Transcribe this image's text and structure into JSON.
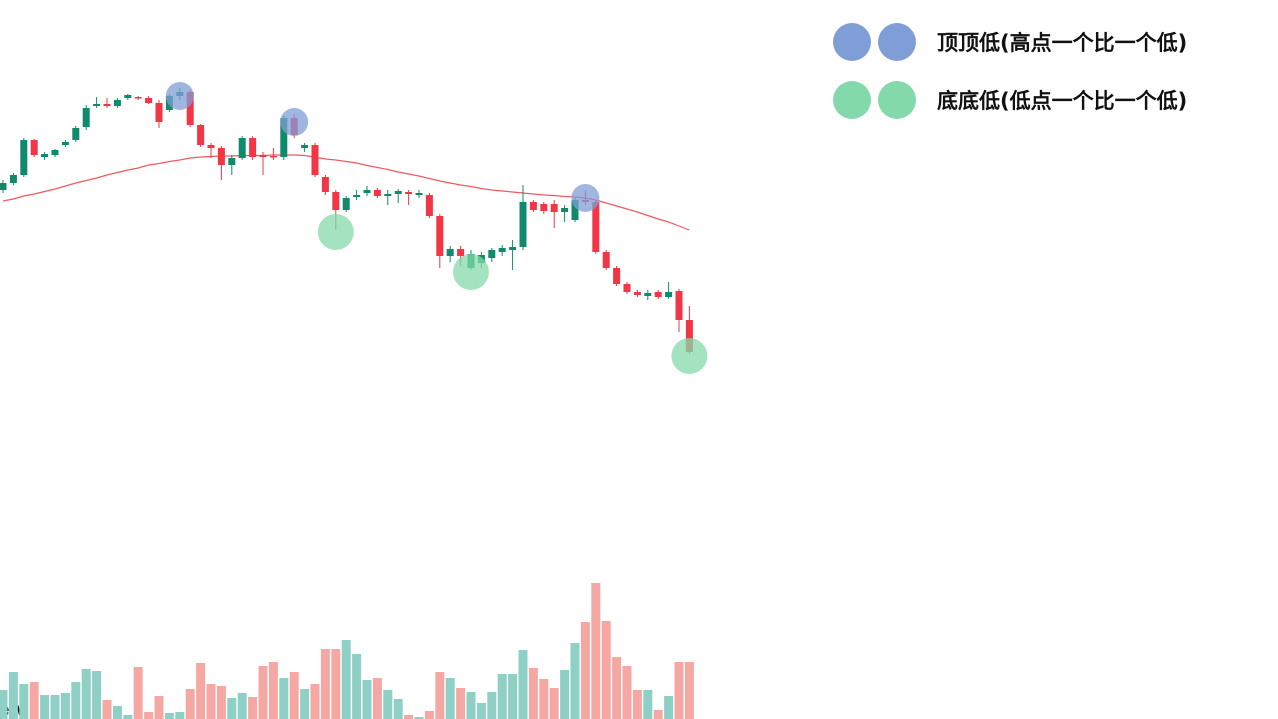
{
  "chart_data": {
    "type": "candlestick",
    "up_color": "#0f8a6c",
    "down_color": "#f23645",
    "volume_up_color": "#8fd0c6",
    "volume_down_color": "#f5a8a3",
    "ma_color": "#ef5a5f",
    "watermark": "ew",
    "ylim": [
      0,
      719
    ],
    "vlim": [
      0,
      140
    ],
    "candles": [
      [
        529,
        539,
        526,
        536
      ],
      [
        536,
        546,
        534,
        544
      ],
      [
        544,
        581,
        542,
        579
      ],
      [
        579,
        580,
        562,
        564
      ],
      [
        562,
        567,
        559,
        565
      ],
      [
        564,
        570,
        562,
        569
      ],
      [
        574,
        579,
        572,
        577
      ],
      [
        579,
        593,
        577,
        591
      ],
      [
        592,
        614,
        589,
        611
      ],
      [
        613,
        622,
        611,
        615
      ],
      [
        615,
        621,
        611,
        613
      ],
      [
        613,
        621,
        611,
        619
      ],
      [
        621,
        625,
        619,
        624
      ],
      [
        622,
        623,
        619,
        621
      ],
      [
        621,
        623,
        615,
        616
      ],
      [
        616,
        619,
        591,
        597
      ],
      [
        609,
        625,
        607,
        623
      ],
      [
        623,
        631,
        619,
        627
      ],
      [
        627,
        629,
        592,
        594
      ],
      [
        594,
        595,
        572,
        574
      ],
      [
        574,
        576,
        561,
        571
      ],
      [
        571,
        573,
        539,
        554
      ],
      [
        554,
        564,
        544,
        561
      ],
      [
        561,
        583,
        559,
        581
      ],
      [
        581,
        583,
        559,
        562
      ],
      [
        564,
        567,
        544,
        562
      ],
      [
        563,
        571,
        559,
        562
      ],
      [
        562,
        603,
        559,
        601
      ],
      [
        601,
        605,
        581,
        584
      ],
      [
        571,
        576,
        567,
        574
      ],
      [
        574,
        576,
        542,
        544
      ],
      [
        542,
        544,
        524,
        527
      ],
      [
        527,
        529,
        489,
        509
      ],
      [
        509,
        523,
        507,
        521
      ],
      [
        522,
        529,
        519,
        524
      ],
      [
        526,
        533,
        523,
        529
      ],
      [
        529,
        531,
        521,
        523
      ],
      [
        523,
        529,
        514,
        525
      ],
      [
        525,
        530,
        516,
        528
      ],
      [
        527,
        529,
        514,
        525
      ],
      [
        524,
        529,
        521,
        526
      ],
      [
        524,
        526,
        501,
        503
      ],
      [
        503,
        505,
        451,
        463
      ],
      [
        463,
        473,
        457,
        470
      ],
      [
        470,
        473,
        453,
        463
      ],
      [
        451,
        469,
        449,
        465
      ],
      [
        456,
        467,
        451,
        464
      ],
      [
        461,
        471,
        457,
        469
      ],
      [
        467,
        474,
        463,
        471
      ],
      [
        469,
        479,
        449,
        472
      ],
      [
        472,
        534,
        469,
        517
      ],
      [
        517,
        519,
        507,
        509
      ],
      [
        515,
        517,
        505,
        508
      ],
      [
        515,
        519,
        491,
        507
      ],
      [
        507,
        514,
        497,
        511
      ],
      [
        499,
        521,
        497,
        519
      ],
      [
        519,
        529,
        514,
        517
      ],
      [
        517,
        519,
        465,
        467
      ],
      [
        467,
        469,
        449,
        451
      ],
      [
        451,
        453,
        433,
        435
      ],
      [
        435,
        437,
        425,
        427
      ],
      [
        427,
        429,
        422,
        424
      ],
      [
        423,
        429,
        419,
        426
      ],
      [
        427,
        429,
        420,
        422
      ],
      [
        422,
        437,
        420,
        427
      ],
      [
        428,
        430,
        387,
        399
      ],
      [
        399,
        413,
        365,
        367
      ]
    ],
    "ma": [
      518,
      520,
      523,
      525,
      527.5,
      530,
      533,
      536,
      538.5,
      541,
      544,
      546.5,
      549,
      551,
      554,
      555.5,
      557.5,
      559,
      561,
      562,
      562.5,
      563,
      563,
      563.5,
      563.5,
      563.5,
      564,
      564,
      564,
      563.5,
      562,
      560,
      559,
      557.5,
      556,
      553.5,
      551.5,
      549.5,
      547,
      545,
      543,
      540.5,
      538,
      536,
      534,
      532.5,
      530.5,
      529,
      528,
      527,
      526,
      525,
      524,
      523.5,
      522.5,
      522,
      521,
      519,
      516,
      513,
      510,
      507,
      503.5,
      500,
      497,
      493,
      489
    ],
    "volume": [
      29,
      47,
      35,
      37,
      24,
      24,
      26,
      37,
      50,
      48,
      19,
      13,
      4,
      52,
      7,
      23,
      6,
      7,
      30,
      56,
      35,
      33,
      21,
      26,
      22,
      53,
      57,
      41,
      47,
      30,
      35,
      70,
      70,
      79,
      65,
      39,
      41,
      29,
      20,
      4,
      2,
      8,
      47,
      41,
      31,
      27,
      16,
      27,
      45,
      45,
      69,
      51,
      40,
      31,
      49,
      76,
      97,
      136,
      98,
      62,
      53,
      29,
      29,
      9,
      23,
      57,
      57
    ],
    "markers": [
      {
        "name": "顶顶低(高点一个比一个低)",
        "color": "#7f9dd6",
        "at": 1,
        "candles": [
          17,
          28,
          56
        ]
      },
      {
        "name": "底底低(低点一个比一个低)",
        "color": "#84d9aa",
        "at": 2,
        "candles": [
          32,
          45,
          66
        ]
      }
    ]
  }
}
